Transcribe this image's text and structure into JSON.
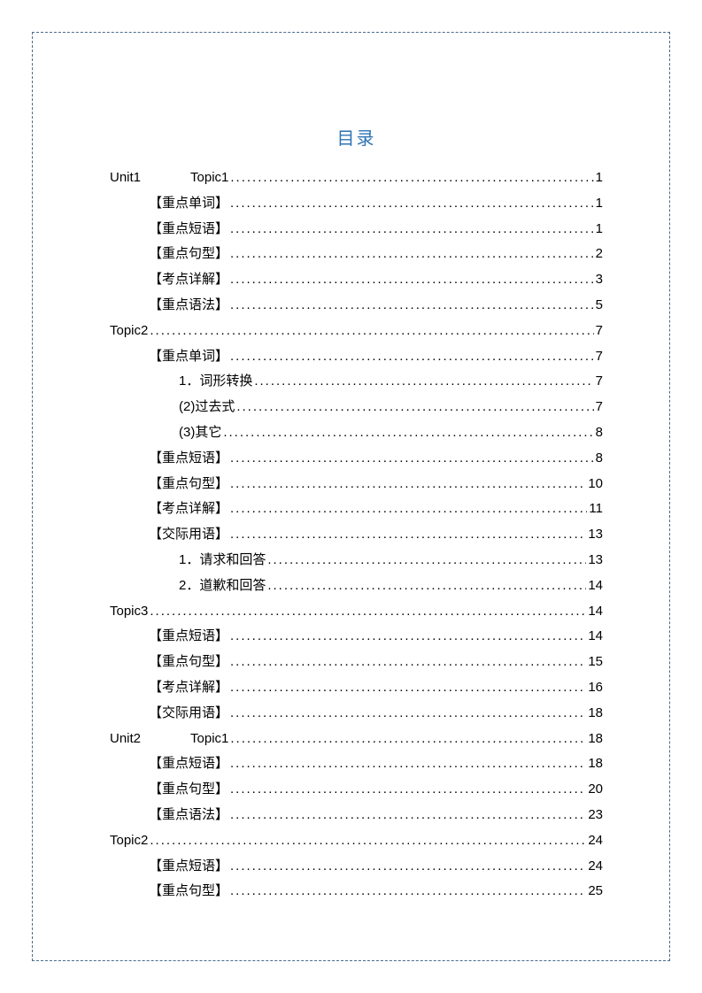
{
  "title": "目录",
  "title_color": "#2e74b5",
  "border_color": "#4a6a8a",
  "text_color": "#000000",
  "background_color": "#ffffff",
  "font_size_title": 20,
  "font_size_entry": 15,
  "line_height": 28.8,
  "entries": [
    {
      "level": 0,
      "label_parts": [
        "Unit1",
        "Topic1"
      ],
      "page": "1"
    },
    {
      "level": 1,
      "label": "【重点单词】",
      "page": "1"
    },
    {
      "level": 1,
      "label": "【重点短语】",
      "page": "1"
    },
    {
      "level": 1,
      "label": "【重点句型】",
      "page": "2"
    },
    {
      "level": 1,
      "label": "【考点详解】",
      "page": "3"
    },
    {
      "level": 1,
      "label": "【重点语法】",
      "page": "5"
    },
    {
      "level": 0,
      "label": "Topic2",
      "page": "7"
    },
    {
      "level": 1,
      "label": "【重点单词】",
      "page": "7"
    },
    {
      "level": 2,
      "label": "1．词形转换",
      "page": "7"
    },
    {
      "level": 2,
      "label": "(2)过去式",
      "page": "7"
    },
    {
      "level": 2,
      "label": "(3)其它",
      "page": "8"
    },
    {
      "level": 1,
      "label": "【重点短语】",
      "page": "8"
    },
    {
      "level": 1,
      "label": "【重点句型】",
      "page": "10"
    },
    {
      "level": 1,
      "label": "【考点详解】",
      "page": "11"
    },
    {
      "level": 1,
      "label": "【交际用语】",
      "page": "13"
    },
    {
      "level": 2,
      "label": "1．请求和回答",
      "page": "13"
    },
    {
      "level": 2,
      "label": "2．道歉和回答",
      "page": "14"
    },
    {
      "level": 0,
      "label": "Topic3",
      "page": "14"
    },
    {
      "level": 1,
      "label": "【重点短语】",
      "page": "14"
    },
    {
      "level": 1,
      "label": "【重点句型】",
      "page": "15"
    },
    {
      "level": 1,
      "label": "【考点详解】",
      "page": "16"
    },
    {
      "level": 1,
      "label": "【交际用语】",
      "page": "18"
    },
    {
      "level": 0,
      "label_parts": [
        "Unit2",
        "Topic1"
      ],
      "page": "18"
    },
    {
      "level": 1,
      "label": "【重点短语】",
      "page": "18"
    },
    {
      "level": 1,
      "label": "【重点句型】",
      "page": "20"
    },
    {
      "level": 1,
      "label": "【重点语法】",
      "page": "23"
    },
    {
      "level": 0,
      "label": "Topic2",
      "page": "24"
    },
    {
      "level": 1,
      "label": "【重点短语】",
      "page": "24"
    },
    {
      "level": 1,
      "label": "【重点句型】",
      "page": "25"
    }
  ]
}
